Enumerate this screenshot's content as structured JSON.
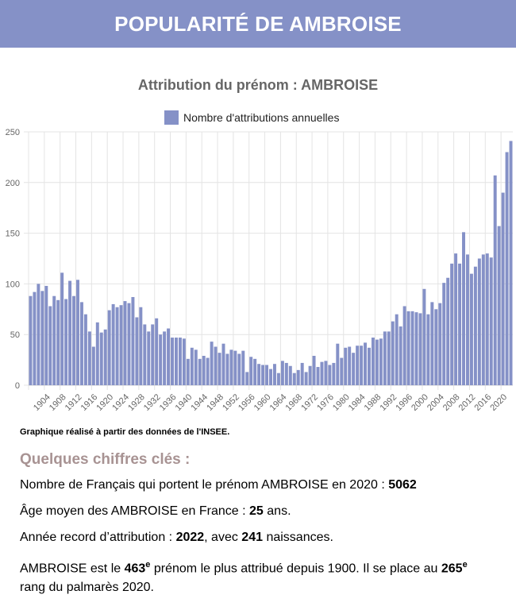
{
  "banner": {
    "title": "POPULARITÉ DE AMBROISE"
  },
  "colors": {
    "banner": "#8591c7",
    "bar": "#8591c7",
    "facts_title": "#a89393"
  },
  "chart_data": {
    "type": "bar",
    "title": "Attribution du prénom : AMBROISE",
    "legend": {
      "position": "top",
      "label": "Nombre d'attributions annuelles"
    },
    "ylim": [
      0,
      250
    ],
    "yticks": [
      0,
      50,
      100,
      150,
      200,
      250
    ],
    "grid": true,
    "x_tick_labels": [
      "1904",
      "1908",
      "1912",
      "1916",
      "1920",
      "1924",
      "1928",
      "1932",
      "1936",
      "1940",
      "1944",
      "1948",
      "1952",
      "1956",
      "1960",
      "1964",
      "1968",
      "1972",
      "1976",
      "1980",
      "1984",
      "1988",
      "1992",
      "1996",
      "2000",
      "2004",
      "2008",
      "2012",
      "2016",
      "2020"
    ],
    "x": [
      1900,
      1901,
      1902,
      1903,
      1904,
      1905,
      1906,
      1907,
      1908,
      1909,
      1910,
      1911,
      1912,
      1913,
      1914,
      1915,
      1916,
      1917,
      1918,
      1919,
      1920,
      1921,
      1922,
      1923,
      1924,
      1925,
      1926,
      1927,
      1928,
      1929,
      1930,
      1931,
      1932,
      1933,
      1934,
      1935,
      1936,
      1937,
      1938,
      1939,
      1940,
      1941,
      1942,
      1943,
      1944,
      1945,
      1946,
      1947,
      1948,
      1949,
      1950,
      1951,
      1952,
      1953,
      1954,
      1955,
      1956,
      1957,
      1958,
      1959,
      1960,
      1961,
      1962,
      1963,
      1964,
      1965,
      1966,
      1967,
      1968,
      1969,
      1970,
      1971,
      1972,
      1973,
      1974,
      1975,
      1976,
      1977,
      1978,
      1979,
      1980,
      1981,
      1982,
      1983,
      1984,
      1985,
      1986,
      1987,
      1988,
      1989,
      1990,
      1991,
      1992,
      1993,
      1994,
      1995,
      1996,
      1997,
      1998,
      1999,
      2000,
      2001,
      2002,
      2003,
      2004,
      2005,
      2006,
      2007,
      2008,
      2009,
      2010,
      2011,
      2012,
      2013,
      2014,
      2015,
      2016,
      2017,
      2018,
      2019,
      2020,
      2021,
      2022
    ],
    "series": [
      {
        "name": "Nombre d'attributions annuelles",
        "values": [
          88,
          92,
          100,
          93,
          98,
          78,
          88,
          84,
          111,
          85,
          103,
          88,
          104,
          82,
          70,
          53,
          38,
          62,
          52,
          55,
          74,
          80,
          77,
          79,
          83,
          81,
          87,
          67,
          77,
          60,
          53,
          60,
          66,
          50,
          53,
          56,
          47,
          47,
          47,
          46,
          26,
          37,
          35,
          26,
          29,
          27,
          43,
          38,
          32,
          41,
          31,
          35,
          34,
          31,
          34,
          13,
          28,
          26,
          21,
          20,
          20,
          16,
          21,
          12,
          24,
          22,
          19,
          12,
          15,
          22,
          13,
          19,
          29,
          18,
          23,
          24,
          20,
          22,
          41,
          27,
          37,
          38,
          32,
          39,
          39,
          42,
          37,
          47,
          45,
          46,
          53,
          53,
          63,
          70,
          58,
          78,
          73,
          73,
          72,
          71,
          95,
          70,
          82,
          75,
          81,
          101,
          106,
          120,
          130,
          120,
          151,
          129,
          110,
          117,
          125,
          129,
          130,
          126,
          207,
          157,
          190,
          230,
          241
        ]
      }
    ]
  },
  "source_note": "Graphique réalisé à partir des données de l'INSEE.",
  "facts": {
    "title": "Quelques chiffres clés :",
    "line1": {
      "pre": "Nombre de Français qui portent le prénom AMBROISE en 2020 : ",
      "value": "5062"
    },
    "line2": {
      "pre": "Âge moyen des AMBROISE en France : ",
      "value": "25",
      "post": " ans."
    },
    "line3": {
      "pre": "Année record d’attribution : ",
      "year": "2022",
      "mid": ", avec ",
      "count": "241",
      "post": " naissances."
    },
    "line4": {
      "pre": "AMBROISE est le ",
      "rank": "463",
      "sup": "e",
      "mid": " prénom le plus attribué depuis 1900. Il se place au ",
      "rank2020": "265",
      "sup2": "e",
      "post": " rang du palmarès 2020."
    }
  }
}
